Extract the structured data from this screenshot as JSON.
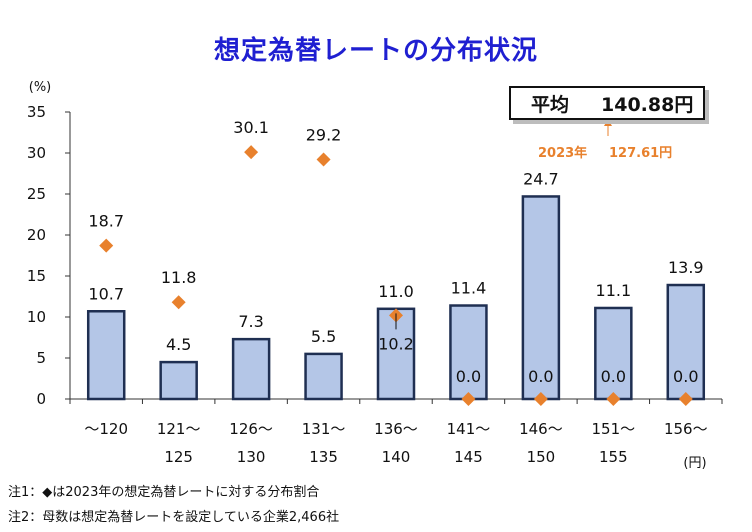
{
  "chart_data": {
    "type": "bar",
    "title": "想定為替レートの分布状況",
    "ylabel": "(%)",
    "xunit": "(円)",
    "ylim": [
      0,
      35
    ],
    "yticks": [
      0,
      5,
      10,
      15,
      20,
      25,
      30,
      35
    ],
    "categories": [
      {
        "line1": "～120",
        "line2": ""
      },
      {
        "line1": "121～",
        "line2": "125"
      },
      {
        "line1": "126～",
        "line2": "130"
      },
      {
        "line1": "131～",
        "line2": "135"
      },
      {
        "line1": "136～",
        "line2": "140"
      },
      {
        "line1": "141～",
        "line2": "145"
      },
      {
        "line1": "146～",
        "line2": "150"
      },
      {
        "line1": "151～",
        "line2": "155"
      },
      {
        "line1": "156～",
        "line2": ""
      }
    ],
    "series": [
      {
        "name": "想定為替レートの分布割合",
        "kind": "bar",
        "color": "#b4c6e7",
        "values": [
          10.7,
          4.5,
          7.3,
          5.5,
          11.0,
          11.4,
          24.7,
          11.1,
          13.9
        ],
        "labels": [
          "10.7",
          "4.5",
          "7.3",
          "5.5",
          "11.0",
          "11.4",
          "24.7",
          "11.1",
          "13.9"
        ]
      },
      {
        "name": "2023年の想定為替レートに対する分布割合",
        "kind": "marker",
        "marker": "diamond",
        "color": "#e8812d",
        "values": [
          18.7,
          11.8,
          30.1,
          29.2,
          10.2,
          0.0,
          0.0,
          0.0,
          0.0
        ],
        "labels": [
          "18.7",
          "11.8",
          "30.1",
          "29.2",
          "10.2",
          "0.0",
          "0.0",
          "0.0",
          "0.0"
        ]
      }
    ],
    "average": {
      "label": "平均",
      "value": "140.88円"
    },
    "previous_average": {
      "label": "2023年",
      "value": "127.61円",
      "color": "#e8812d"
    },
    "notes": [
      "注1：◆は2023年の想定為替レートに対する分布割合",
      "注2：母数は想定為替レートを設定している企業2,466社"
    ]
  }
}
